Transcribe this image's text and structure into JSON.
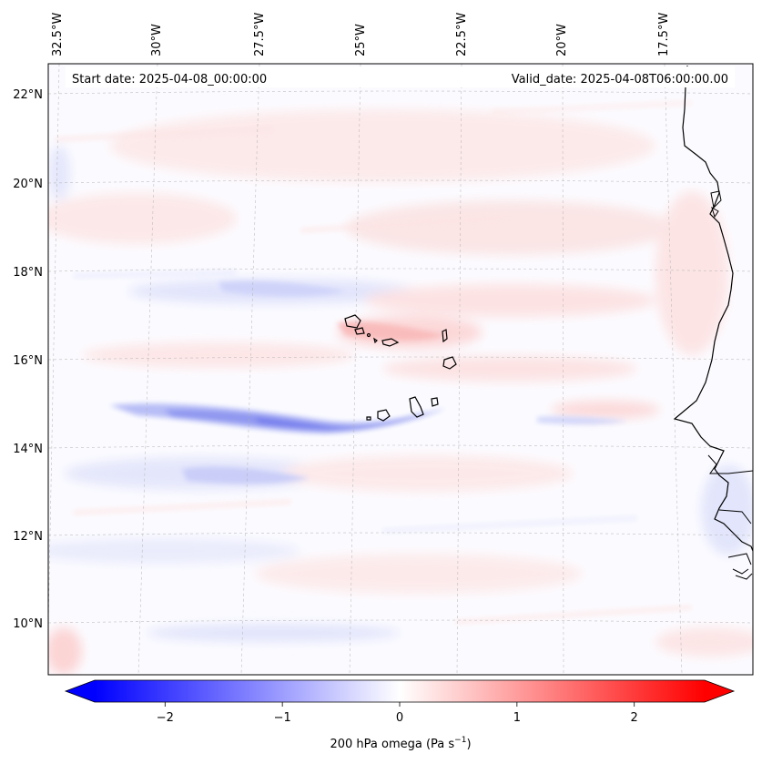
{
  "map": {
    "title_left": "Start date: 2025-04-08_00:00:00",
    "title_right": "Valid_date: 2025-04-08T06:00:00.00",
    "lon_labels": [
      "32.5°W",
      "30°W",
      "27.5°W",
      "25°W",
      "22.5°W",
      "20°W",
      "17.5°W"
    ],
    "lat_labels": [
      "22°N",
      "20°N",
      "18°N",
      "16°N",
      "14°N",
      "12°N",
      "10°N"
    ]
  },
  "colorbar": {
    "label_prefix": "200 hPa omega (Pa s",
    "label_exp": "−1",
    "label_suffix": ")",
    "min": -2.6,
    "max": 2.6,
    "low_color": "#0000ff",
    "mid_color": "#ffffff",
    "high_color": "#ff0000",
    "ticks": [
      {
        "value": -2,
        "label": "−2"
      },
      {
        "value": -1,
        "label": "−1"
      },
      {
        "value": 0,
        "label": "0"
      },
      {
        "value": 1,
        "label": "1"
      },
      {
        "value": 2,
        "label": "2"
      }
    ]
  },
  "colors": {
    "coastline": "#000000",
    "grid": "#b0b0b0"
  }
}
